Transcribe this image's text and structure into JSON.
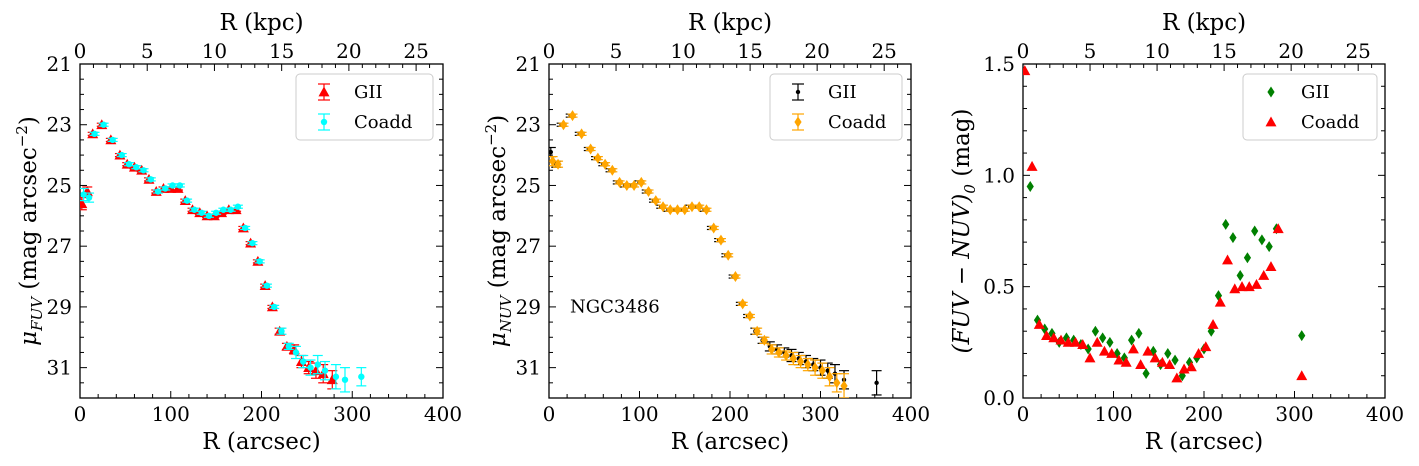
{
  "chart_data": [
    {
      "type": "scatter",
      "xlabel": "R (arcsec)",
      "ylabel": "μ",
      "ylabel_sub": "FUV",
      "ylabel_rest": " (mag arcsec",
      "ylabel_sup": "−2",
      "ylabel_end": ")",
      "top_xlabel": "R (kpc)",
      "xlim": [
        0,
        400
      ],
      "ylim": [
        32,
        21
      ],
      "xticks": [
        0,
        100,
        200,
        300,
        400
      ],
      "yticks": [
        21,
        23,
        25,
        27,
        29,
        31
      ],
      "top_ticks": [
        0,
        5,
        10,
        15,
        20,
        25
      ],
      "kpc_per_arcsec": 0.0675,
      "legend_position": "top-right",
      "series": [
        {
          "name": "GII",
          "color": "#ff0000",
          "marker": "triangle",
          "x": [
            2,
            8,
            14,
            24,
            34,
            44,
            52,
            60,
            68,
            76,
            84,
            92,
            100,
            108,
            116,
            124,
            132,
            140,
            148,
            156,
            164,
            172,
            180,
            188,
            196,
            204,
            212,
            220,
            228,
            236,
            244,
            252,
            260,
            268,
            278
          ],
          "y": [
            25.6,
            25.2,
            23.3,
            23.0,
            23.5,
            24.0,
            24.3,
            24.4,
            24.5,
            24.8,
            25.2,
            25.1,
            25.1,
            25.1,
            25.5,
            25.8,
            25.9,
            26.0,
            26.0,
            25.9,
            25.8,
            25.8,
            26.4,
            26.9,
            27.5,
            28.3,
            29.0,
            29.8,
            30.3,
            30.4,
            30.8,
            31.0,
            31.1,
            31.2,
            31.4
          ],
          "err": [
            0.2,
            0.15,
            0.05,
            0.05,
            0.05,
            0.05,
            0.05,
            0.05,
            0.05,
            0.05,
            0.05,
            0.05,
            0.05,
            0.05,
            0.05,
            0.05,
            0.05,
            0.05,
            0.05,
            0.05,
            0.05,
            0.05,
            0.05,
            0.05,
            0.05,
            0.05,
            0.05,
            0.1,
            0.1,
            0.15,
            0.2,
            0.2,
            0.25,
            0.3,
            0.3
          ]
        },
        {
          "name": "Coadd",
          "color": "#00ffff",
          "marker": "circle",
          "x": [
            4,
            10,
            16,
            26,
            36,
            46,
            54,
            62,
            70,
            78,
            86,
            94,
            102,
            110,
            118,
            126,
            134,
            142,
            150,
            158,
            166,
            174,
            182,
            190,
            198,
            206,
            214,
            222,
            230,
            238,
            246,
            254,
            262,
            270,
            282,
            292,
            310
          ],
          "y": [
            25.3,
            25.4,
            23.3,
            23.0,
            23.5,
            24.0,
            24.3,
            24.4,
            24.5,
            24.8,
            25.2,
            25.1,
            25.0,
            25.0,
            25.5,
            25.8,
            25.9,
            26.0,
            25.9,
            25.8,
            25.8,
            25.7,
            26.4,
            26.9,
            27.5,
            28.3,
            29.0,
            29.8,
            30.3,
            30.5,
            30.8,
            31.0,
            30.9,
            31.1,
            31.3,
            31.4,
            31.3
          ],
          "err": [
            0.2,
            0.15,
            0.05,
            0.05,
            0.05,
            0.05,
            0.05,
            0.05,
            0.05,
            0.05,
            0.05,
            0.05,
            0.05,
            0.05,
            0.05,
            0.05,
            0.05,
            0.05,
            0.05,
            0.05,
            0.05,
            0.05,
            0.05,
            0.05,
            0.05,
            0.05,
            0.05,
            0.1,
            0.1,
            0.2,
            0.2,
            0.25,
            0.3,
            0.3,
            0.4,
            0.4,
            0.3
          ]
        }
      ]
    },
    {
      "type": "scatter",
      "xlabel": "R (arcsec)",
      "ylabel": "μ",
      "ylabel_sub": "NUV",
      "ylabel_rest": " (mag arcsec",
      "ylabel_sup": "−2",
      "ylabel_end": ")",
      "top_xlabel": "R (kpc)",
      "annotation": "NGC3486",
      "xlim": [
        0,
        400
      ],
      "ylim": [
        32,
        21
      ],
      "xticks": [
        0,
        100,
        200,
        300,
        400
      ],
      "yticks": [
        21,
        23,
        25,
        27,
        29,
        31
      ],
      "top_ticks": [
        0,
        5,
        10,
        15,
        20,
        25
      ],
      "kpc_per_arcsec": 0.0675,
      "legend_position": "top-right",
      "series": [
        {
          "name": "GII",
          "color": "#000000",
          "marker": "point",
          "x": [
            2,
            8,
            14,
            24,
            34,
            44,
            52,
            60,
            68,
            76,
            84,
            92,
            100,
            108,
            116,
            124,
            132,
            140,
            148,
            156,
            164,
            172,
            180,
            188,
            196,
            204,
            212,
            220,
            228,
            236,
            244,
            252,
            260,
            268,
            276,
            284,
            292,
            300,
            308,
            316,
            326,
            362
          ],
          "y": [
            23.9,
            24.3,
            23.0,
            22.7,
            23.3,
            23.8,
            24.1,
            24.3,
            24.5,
            24.9,
            25.0,
            25.0,
            24.9,
            25.2,
            25.5,
            25.7,
            25.8,
            25.8,
            25.8,
            25.7,
            25.7,
            25.8,
            26.4,
            26.8,
            27.3,
            28.0,
            28.9,
            29.3,
            29.8,
            30.1,
            30.3,
            30.4,
            30.5,
            30.6,
            30.7,
            30.8,
            30.9,
            31.0,
            31.1,
            31.2,
            31.4,
            31.5
          ],
          "err": [
            0.15,
            0.1,
            0.05,
            0.05,
            0.05,
            0.05,
            0.05,
            0.05,
            0.05,
            0.05,
            0.05,
            0.05,
            0.05,
            0.05,
            0.05,
            0.05,
            0.05,
            0.05,
            0.05,
            0.05,
            0.05,
            0.05,
            0.05,
            0.05,
            0.05,
            0.05,
            0.05,
            0.05,
            0.1,
            0.1,
            0.15,
            0.15,
            0.15,
            0.2,
            0.2,
            0.2,
            0.2,
            0.25,
            0.25,
            0.3,
            0.3,
            0.4
          ]
        },
        {
          "name": "Coadd",
          "color": "#ffa500",
          "marker": "diamond",
          "x": [
            4,
            10,
            16,
            26,
            36,
            46,
            54,
            62,
            70,
            78,
            86,
            94,
            102,
            110,
            118,
            126,
            134,
            142,
            150,
            158,
            166,
            174,
            182,
            190,
            198,
            206,
            214,
            222,
            230,
            238,
            246,
            254,
            262,
            270,
            278,
            286,
            294,
            302,
            310,
            318,
            326
          ],
          "y": [
            24.2,
            24.3,
            23.0,
            22.7,
            23.3,
            23.8,
            24.1,
            24.3,
            24.5,
            24.9,
            25.0,
            25.0,
            24.9,
            25.2,
            25.5,
            25.7,
            25.8,
            25.8,
            25.8,
            25.7,
            25.7,
            25.8,
            26.4,
            26.8,
            27.3,
            28.0,
            28.9,
            29.3,
            29.8,
            30.1,
            30.4,
            30.5,
            30.6,
            30.7,
            30.8,
            30.9,
            31.0,
            31.1,
            31.3,
            31.5,
            31.6
          ],
          "err": [
            0.15,
            0.1,
            0.05,
            0.05,
            0.05,
            0.05,
            0.05,
            0.05,
            0.05,
            0.05,
            0.05,
            0.05,
            0.05,
            0.05,
            0.05,
            0.05,
            0.05,
            0.05,
            0.05,
            0.05,
            0.05,
            0.05,
            0.05,
            0.05,
            0.05,
            0.05,
            0.05,
            0.05,
            0.1,
            0.1,
            0.15,
            0.15,
            0.15,
            0.2,
            0.2,
            0.2,
            0.25,
            0.25,
            0.3,
            0.3,
            0.4
          ]
        }
      ]
    },
    {
      "type": "scatter",
      "xlabel": "R (arcsec)",
      "ylabel": "(FUV − NUV)",
      "ylabel_sub": "0",
      "ylabel_rest": " (mag)",
      "ylabel_sup": "",
      "ylabel_end": "",
      "top_xlabel": "R (kpc)",
      "xlim": [
        0,
        400
      ],
      "ylim": [
        0,
        1.5
      ],
      "xticks": [
        0,
        100,
        200,
        300,
        400
      ],
      "yticks": [
        0.0,
        0.5,
        1.0,
        1.5
      ],
      "yticks_labels": [
        "0.0",
        "0.5",
        "1.0",
        "1.5"
      ],
      "top_ticks": [
        0,
        5,
        10,
        15,
        20,
        25
      ],
      "kpc_per_arcsec": 0.0675,
      "legend_position": "top-right",
      "series": [
        {
          "name": "GII",
          "color": "#008000",
          "marker": "diamond",
          "x": [
            8,
            16,
            24,
            32,
            40,
            48,
            56,
            64,
            72,
            80,
            88,
            96,
            104,
            112,
            120,
            128,
            136,
            144,
            152,
            160,
            168,
            176,
            184,
            192,
            200,
            208,
            216,
            224,
            232,
            240,
            248,
            256,
            264,
            272,
            280,
            308
          ],
          "y": [
            0.95,
            0.35,
            0.31,
            0.29,
            0.25,
            0.27,
            0.26,
            0.24,
            0.22,
            0.3,
            0.27,
            0.25,
            0.2,
            0.18,
            0.26,
            0.29,
            0.11,
            0.21,
            0.15,
            0.2,
            0.17,
            0.1,
            0.16,
            0.18,
            0.22,
            0.3,
            0.46,
            0.78,
            0.72,
            0.55,
            0.63,
            0.75,
            0.71,
            0.68,
            0.76,
            0.28
          ]
        },
        {
          "name": "Coadd",
          "color": "#ff0000",
          "marker": "triangle",
          "x": [
            2,
            10,
            18,
            26,
            34,
            42,
            50,
            58,
            66,
            74,
            82,
            90,
            98,
            106,
            114,
            122,
            130,
            138,
            146,
            154,
            162,
            170,
            178,
            186,
            194,
            202,
            210,
            218,
            226,
            234,
            242,
            250,
            258,
            266,
            274,
            282,
            308
          ],
          "y": [
            1.47,
            1.04,
            0.33,
            0.28,
            0.27,
            0.26,
            0.25,
            0.25,
            0.24,
            0.18,
            0.25,
            0.21,
            0.2,
            0.17,
            0.16,
            0.22,
            0.15,
            0.21,
            0.18,
            0.16,
            0.15,
            0.09,
            0.13,
            0.14,
            0.2,
            0.23,
            0.33,
            0.43,
            0.62,
            0.49,
            0.5,
            0.5,
            0.51,
            0.55,
            0.59,
            0.76,
            0.1
          ]
        }
      ]
    }
  ]
}
